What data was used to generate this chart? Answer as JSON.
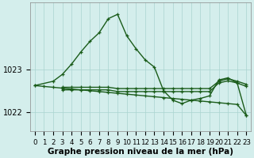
{
  "bg_color": "#d4eeec",
  "grid_color": "#aad4d0",
  "line_color": "#1a5c1a",
  "xlabel": "Graphe pression niveau de la mer (hPa)",
  "xlabel_fontsize": 7.5,
  "tick_fontsize": 6.2,
  "ytick_fontsize": 7,
  "ylim": [
    1021.55,
    1024.55
  ],
  "xlim": [
    -0.5,
    23.5
  ],
  "series_decline": {
    "x": [
      0,
      1,
      2,
      3,
      4,
      5,
      6,
      7,
      8,
      9,
      10,
      11,
      12,
      13,
      14,
      15,
      16,
      17,
      18,
      19,
      20,
      21,
      22,
      23
    ],
    "y": [
      1022.62,
      1022.6,
      1022.58,
      1022.56,
      1022.54,
      1022.52,
      1022.5,
      1022.48,
      1022.46,
      1022.44,
      1022.42,
      1022.4,
      1022.38,
      1022.36,
      1022.34,
      1022.32,
      1022.3,
      1022.28,
      1022.26,
      1022.24,
      1022.22,
      1022.2,
      1022.18,
      1021.92
    ]
  },
  "series_flat_upper": {
    "x": [
      3,
      4,
      5,
      6,
      7,
      8,
      9,
      10,
      11,
      12,
      13,
      14,
      15,
      16,
      17,
      18,
      19,
      20,
      21,
      22,
      23
    ],
    "y": [
      1022.58,
      1022.58,
      1022.58,
      1022.58,
      1022.58,
      1022.58,
      1022.55,
      1022.55,
      1022.55,
      1022.55,
      1022.55,
      1022.55,
      1022.55,
      1022.55,
      1022.55,
      1022.55,
      1022.55,
      1022.72,
      1022.78,
      1022.72,
      1022.65
    ]
  },
  "series_flat_lower": {
    "x": [
      3,
      4,
      5,
      6,
      7,
      8,
      9,
      10,
      11,
      12,
      13,
      14,
      15,
      16,
      17,
      18,
      19,
      20,
      21,
      22,
      23
    ],
    "y": [
      1022.52,
      1022.52,
      1022.52,
      1022.52,
      1022.52,
      1022.52,
      1022.48,
      1022.48,
      1022.48,
      1022.48,
      1022.48,
      1022.48,
      1022.48,
      1022.48,
      1022.48,
      1022.48,
      1022.48,
      1022.68,
      1022.73,
      1022.68,
      1022.6
    ]
  },
  "series_peak": {
    "x": [
      0,
      2,
      3,
      4,
      5,
      6,
      7,
      8,
      9,
      10,
      11,
      12,
      13,
      14,
      15,
      16,
      17,
      18,
      19,
      20,
      21,
      22,
      23
    ],
    "y": [
      1022.62,
      1022.72,
      1022.88,
      1023.12,
      1023.4,
      1023.65,
      1023.85,
      1024.18,
      1024.28,
      1023.78,
      1023.48,
      1023.22,
      1023.05,
      1022.5,
      1022.28,
      1022.2,
      1022.28,
      1022.32,
      1022.38,
      1022.75,
      1022.8,
      1022.68,
      1021.92
    ]
  }
}
